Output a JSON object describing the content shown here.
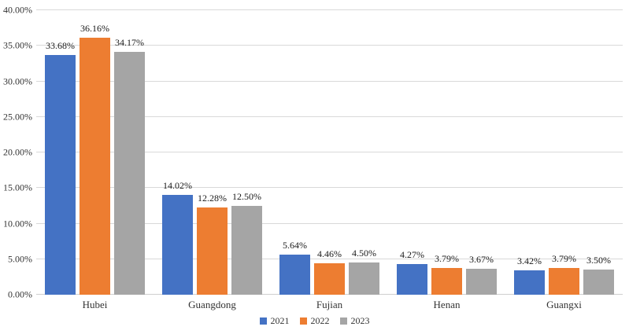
{
  "chart_data": {
    "type": "bar",
    "title": "",
    "xlabel": "",
    "ylabel": "",
    "categories": [
      "Hubei",
      "Guangdong",
      "Fujian",
      "Henan",
      "Guangxi"
    ],
    "series": [
      {
        "name": "2021",
        "color": "#4472C4",
        "values": [
          33.68,
          14.02,
          5.64,
          4.27,
          3.42
        ]
      },
      {
        "name": "2022",
        "color": "#ED7D31",
        "values": [
          36.16,
          12.28,
          4.46,
          3.79,
          3.79
        ]
      },
      {
        "name": "2023",
        "color": "#A5A5A5",
        "values": [
          34.17,
          12.5,
          4.5,
          3.67,
          3.5
        ]
      }
    ],
    "data_label_suffix": "%",
    "ylim": [
      0,
      40
    ],
    "ytick_step": 5,
    "ytick_labels": [
      "0.00%",
      "5.00%",
      "10.00%",
      "15.00%",
      "20.00%",
      "25.00%",
      "30.00%",
      "35.00%",
      "40.00%"
    ],
    "grid": true,
    "legend_position": "bottom"
  },
  "colors": {
    "gridline": "#d9d9d9",
    "axis_text": "#333333",
    "data_label_text": "#1a1a1a",
    "background": "#ffffff"
  }
}
